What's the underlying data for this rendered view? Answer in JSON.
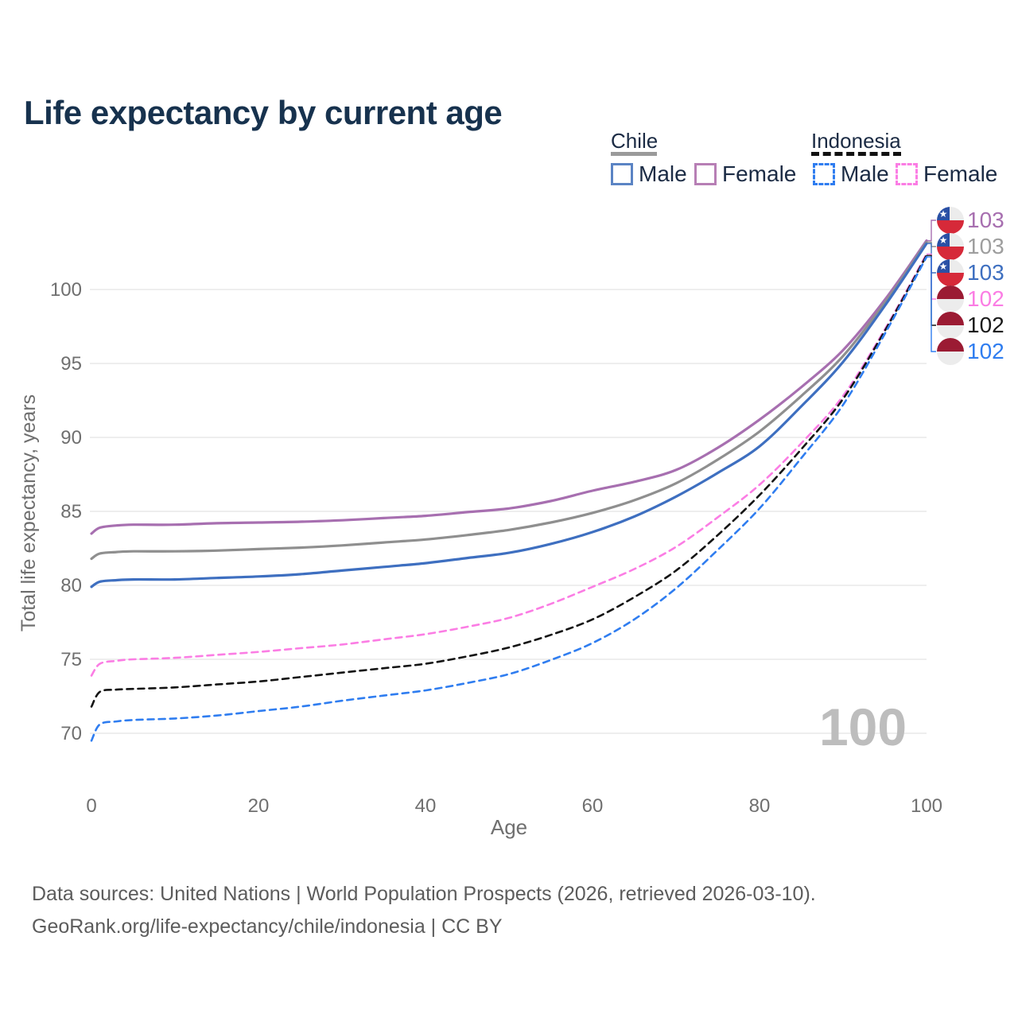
{
  "title": "Life expectancy by current age",
  "legend": {
    "chile": {
      "label": "Chile",
      "male": "Male",
      "female": "Female",
      "line_color": "#9a9a9a"
    },
    "indonesia": {
      "label": "Indonesia",
      "male": "Male",
      "female": "Female",
      "line_color": "#111111"
    }
  },
  "footer": {
    "line1": "Data sources: United Nations | World Population Prospects (2026, retrieved 2026-03-10).",
    "line2": "GeoRank.org/life-expectancy/chile/indonesia | CC BY"
  },
  "chart_data": {
    "type": "line",
    "title": "Life expectancy by current age",
    "xlabel": "Age",
    "ylabel": "Total life expectancy, years",
    "xlim": [
      0,
      100
    ],
    "ylim": [
      69,
      104
    ],
    "x_ticks": [
      0,
      20,
      40,
      60,
      80,
      100
    ],
    "y_ticks": [
      70,
      75,
      80,
      85,
      90,
      95,
      100
    ],
    "grid": "horizontal",
    "legend_position": "top-right",
    "watermark": "100",
    "x": [
      0,
      1,
      3,
      5,
      10,
      15,
      20,
      25,
      30,
      35,
      40,
      45,
      50,
      55,
      60,
      65,
      70,
      75,
      80,
      85,
      90,
      95,
      100
    ],
    "series": [
      {
        "name": "Chile Female",
        "country": "Chile",
        "sex": "Female",
        "color": "#a76fb0",
        "dashed": false,
        "flag": "chile-flag-icon",
        "end_label": "103",
        "end_label_color": "#a76fb0",
        "values": [
          83.5,
          83.9,
          84.05,
          84.1,
          84.1,
          84.2,
          84.25,
          84.3,
          84.4,
          84.55,
          84.7,
          84.95,
          85.2,
          85.7,
          86.4,
          87.0,
          87.8,
          89.3,
          91.2,
          93.4,
          95.9,
          99.3,
          103.3
        ]
      },
      {
        "name": "Chile Both sexes",
        "country": "Chile",
        "sex": "Both",
        "color": "#8f8f8f",
        "dashed": false,
        "flag": "chile-flag-icon",
        "end_label": "103",
        "end_label_color": "#9e9e9e",
        "values": [
          81.8,
          82.15,
          82.25,
          82.3,
          82.3,
          82.35,
          82.45,
          82.55,
          82.7,
          82.9,
          83.1,
          83.4,
          83.75,
          84.25,
          84.9,
          85.75,
          86.9,
          88.5,
          90.4,
          92.8,
          95.5,
          99.1,
          103.2
        ]
      },
      {
        "name": "Chile Male",
        "country": "Chile",
        "sex": "Male",
        "color": "#3e6fc0",
        "dashed": false,
        "flag": "chile-flag-icon",
        "end_label": "103",
        "end_label_color": "#3e6fc0",
        "values": [
          79.9,
          80.25,
          80.35,
          80.4,
          80.4,
          80.5,
          80.6,
          80.75,
          81.0,
          81.25,
          81.5,
          81.85,
          82.2,
          82.8,
          83.6,
          84.65,
          86.0,
          87.6,
          89.4,
          92.1,
          95.1,
          98.9,
          103.1
        ]
      },
      {
        "name": "Indonesia Female",
        "country": "Indonesia",
        "sex": "Female",
        "color": "#fb7de4",
        "dashed": true,
        "flag": "indonesia-flag-icon",
        "end_label": "102",
        "end_label_color": "#fb7de4",
        "values": [
          73.9,
          74.7,
          74.9,
          75.0,
          75.1,
          75.3,
          75.5,
          75.75,
          76.0,
          76.35,
          76.7,
          77.2,
          77.8,
          78.75,
          79.9,
          81.1,
          82.6,
          84.6,
          86.8,
          89.6,
          92.8,
          97.3,
          102.4
        ]
      },
      {
        "name": "Indonesia Both sexes",
        "country": "Indonesia",
        "sex": "Both",
        "color": "#141414",
        "dashed": true,
        "flag": "indonesia-flag-icon",
        "end_label": "102",
        "end_label_color": "#1a1a1a",
        "values": [
          71.8,
          72.8,
          72.95,
          73.0,
          73.1,
          73.3,
          73.5,
          73.8,
          74.1,
          74.4,
          74.7,
          75.2,
          75.8,
          76.65,
          77.7,
          79.2,
          81.0,
          83.4,
          86.1,
          89.2,
          92.6,
          97.2,
          102.3
        ]
      },
      {
        "name": "Indonesia Male",
        "country": "Indonesia",
        "sex": "Male",
        "color": "#2f7df0",
        "dashed": true,
        "flag": "indonesia-flag-icon",
        "end_label": "102",
        "end_label_color": "#2f7df0",
        "values": [
          69.5,
          70.6,
          70.8,
          70.9,
          71.0,
          71.2,
          71.5,
          71.8,
          72.2,
          72.55,
          72.9,
          73.4,
          74.0,
          74.95,
          76.1,
          77.7,
          79.8,
          82.4,
          85.2,
          88.6,
          92.2,
          97.0,
          102.2
        ]
      }
    ],
    "flag_colors": {
      "chile_blue": "#2a50a5",
      "chile_red": "#d62939",
      "indonesia_red": "#9b1b33",
      "flag_white": "#ececec"
    },
    "style": {
      "gridline_color": "#e8e8e8",
      "tick_color": "#6f6f6f",
      "watermark_color": "#bdbdbd",
      "title_color": "#17324e",
      "footer_color": "#5c5c5c"
    }
  }
}
